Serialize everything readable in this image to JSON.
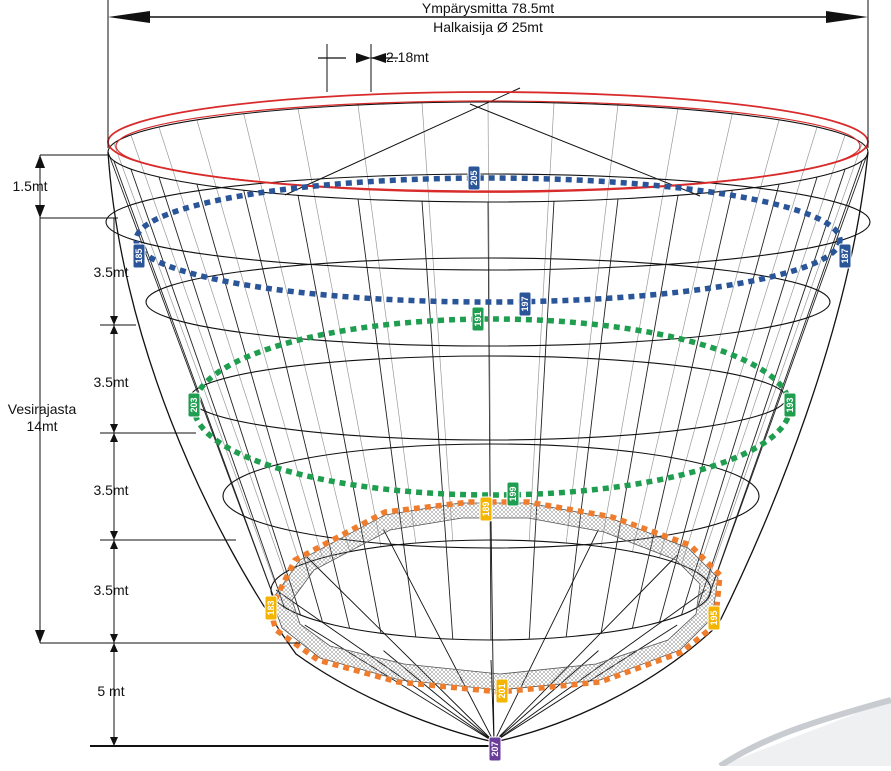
{
  "top_dimension": {
    "circumference_label": "Ympärysmitta 78.5mt",
    "diameter_label": "Halkaisija Ø 25mt"
  },
  "spacing_label": "2.18mt",
  "left_dimensions": {
    "segment_1": "1.5mt",
    "segment_2": "3.5mt",
    "segment_3": "3.5mt",
    "segment_4": "3.5mt",
    "segment_5": "3.5mt",
    "segment_6": "5 mt",
    "waterline_label_line1": "Vesirajasta",
    "waterline_label_line2": "14mt"
  },
  "colors": {
    "top_rim": "#d92b2b",
    "blue_ring": "#2a5599",
    "green_ring": "#1f9e4f",
    "orange_ring": "#ef7d2d",
    "yellow_badge": "#f5b400",
    "purple_badge": "#6a3d9a"
  },
  "badges": {
    "b205": "205",
    "b185": "185",
    "b187": "187",
    "b197": "197",
    "b191": "191",
    "b203": "203",
    "b193": "193",
    "b199": "199",
    "b189": "189",
    "b183": "183",
    "b195": "195",
    "b201": "201",
    "b207": "207"
  }
}
